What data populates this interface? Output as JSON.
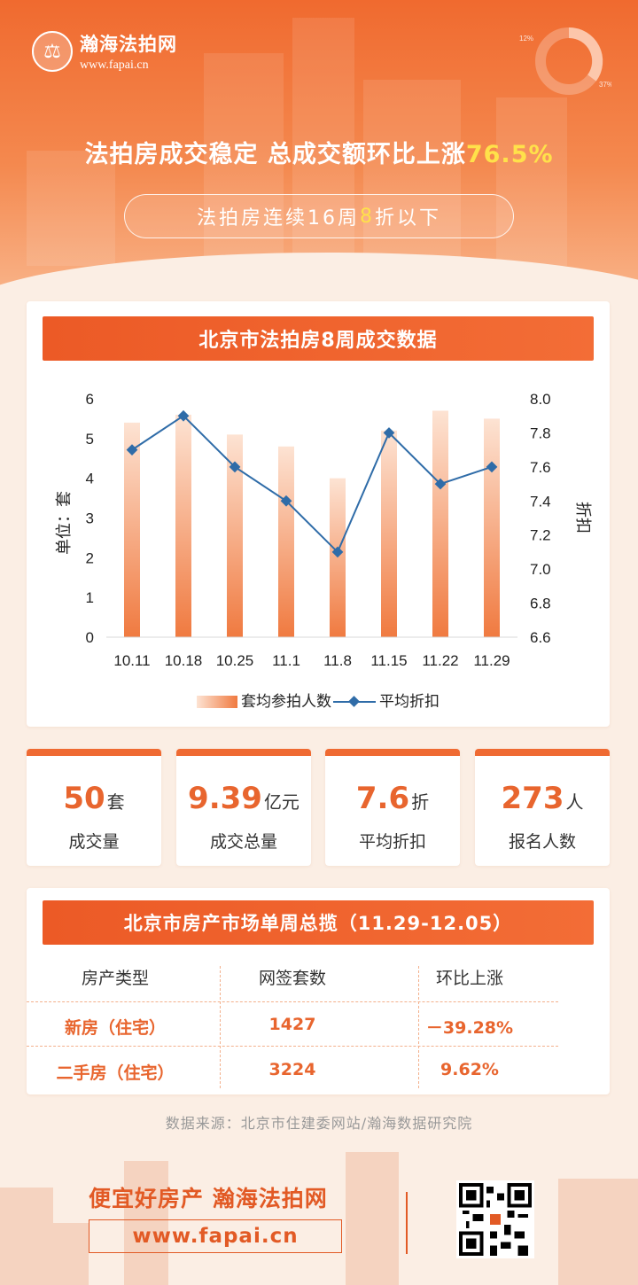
{
  "brand": {
    "name": "瀚海法拍网",
    "url": "www.fapai.cn",
    "logo_icon": "gavel-seal-icon",
    "donut_labels": [
      "12%",
      "37%"
    ]
  },
  "headline": {
    "prefix": "法拍房成交稳定 总成交额环比上涨",
    "highlight": "76.5%"
  },
  "subheadline": {
    "prefix": "法拍房连续16周",
    "highlight": "8",
    "suffix": "折以下"
  },
  "chart_title": "北京市法拍房8周成交数据",
  "chart_data": {
    "type": "bar",
    "categories": [
      "10.11",
      "10.18",
      "10.25",
      "11.1",
      "11.8",
      "11.15",
      "11.22",
      "11.29"
    ],
    "series": [
      {
        "name": "套均参拍人数",
        "type": "bar",
        "axis": "left",
        "values": [
          5.4,
          5.6,
          5.1,
          4.8,
          4.0,
          5.2,
          5.7,
          5.5
        ]
      },
      {
        "name": "平均折扣",
        "type": "line",
        "axis": "right",
        "values": [
          7.7,
          7.9,
          7.6,
          7.4,
          7.1,
          7.8,
          7.5,
          7.6
        ]
      }
    ],
    "ylabel": "单位：套",
    "y2label": "折扣",
    "ylim": [
      0,
      6
    ],
    "y2lim": [
      6.6,
      8.0
    ],
    "yticks": [
      "0",
      "1",
      "2",
      "3",
      "4",
      "5",
      "6"
    ],
    "y2ticks": [
      "6.6",
      "6.8",
      "7.0",
      "7.2",
      "7.4",
      "7.6",
      "7.8",
      "8.0"
    ],
    "legend_position": "bottom",
    "bar_color": "#f07a40",
    "line_color": "#2f6ca8"
  },
  "stats": [
    {
      "num": "50",
      "unit": "套",
      "label": "成交量"
    },
    {
      "num": "9.39",
      "unit": "亿元",
      "label": "成交总量"
    },
    {
      "num": "7.6",
      "unit": "折",
      "label": "平均折扣"
    },
    {
      "num": "273",
      "unit": "人",
      "label": "报名人数"
    }
  ],
  "table": {
    "title": "北京市房产市场单周总揽（11.29-12.05）",
    "headers": [
      "房产类型",
      "网签套数",
      "环比上涨"
    ],
    "rows": [
      [
        "新房（住宅）",
        "1427",
        "－39.28%"
      ],
      [
        "二手房（住宅）",
        "3224",
        "9.62%"
      ]
    ]
  },
  "source": "数据来源：北京市住建委网站/瀚海数据研究院",
  "footer": {
    "slogan": "便宜好房产 瀚海法拍网",
    "url": "www.fapai.cn",
    "qr_icon": "qr-code-icon"
  },
  "colors": {
    "accent": "#ec5a26",
    "highlight": "#ffe14a",
    "line": "#2f6ca8"
  }
}
